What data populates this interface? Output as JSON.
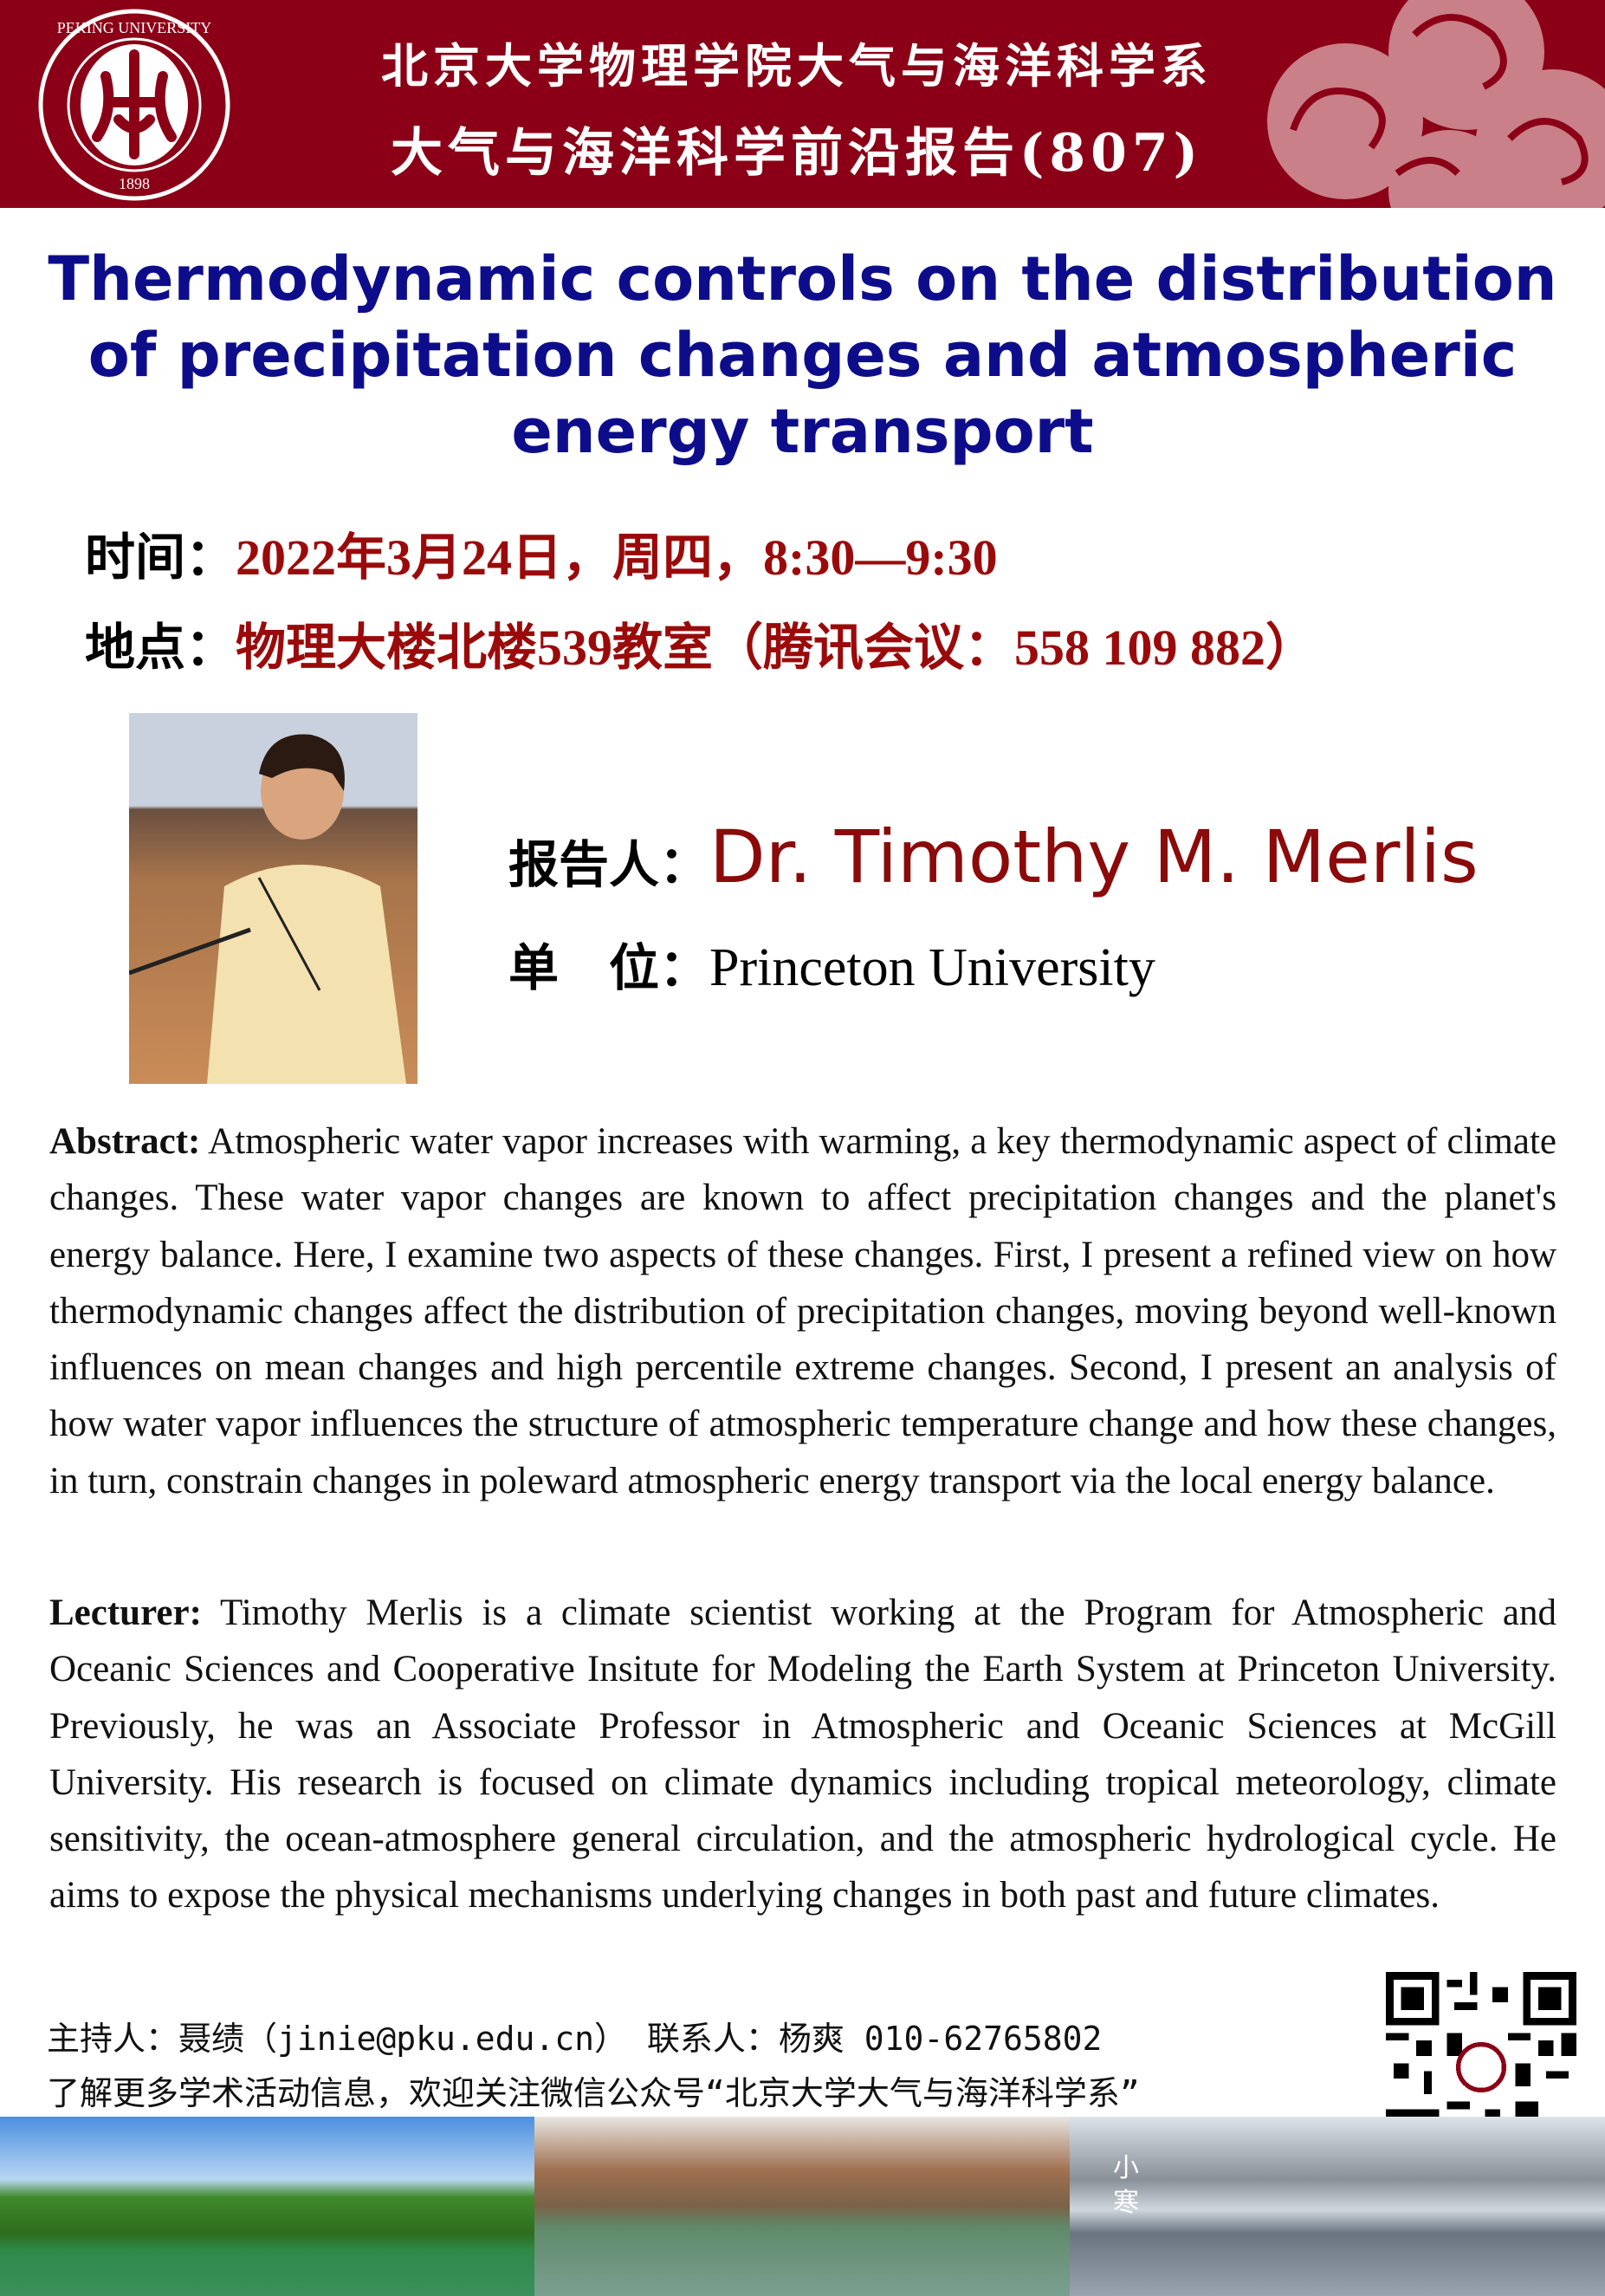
{
  "header": {
    "logo_text": "PEKING UNIVERSITY 1898",
    "line1": "北京大学物理学院大气与海洋科学系",
    "line2": "大气与海洋科学前沿报告(807)",
    "bg_color": "#8b0016"
  },
  "title": "Thermodynamic controls on the distribution of precipitation changes and atmospheric energy transport",
  "time": {
    "label": "时间：",
    "value": "2022年3月24日，周四，8:30—9:30"
  },
  "location": {
    "label": "地点：",
    "value": "物理大楼北楼539教室（腾讯会议：558 109 882）"
  },
  "speaker": {
    "label": "报告人：",
    "name": "Dr. Timothy M. Merlis"
  },
  "unit": {
    "label": "单　位：",
    "value": "Princeton University"
  },
  "abstract": {
    "label": "Abstract:",
    "text": " Atmospheric water vapor increases with warming, a key thermodynamic aspect of climate changes. These water vapor changes are known to affect precipitation changes and the planet's energy balance. Here, I examine two aspects of these changes. First, I present a refined view on how thermodynamic changes affect the distribution of precipitation changes, moving beyond well-known influences on mean changes and high percentile extreme changes. Second, I present an analysis of how water vapor influences the structure of atmospheric temperature change and how these changes, in turn, constrain changes in poleward atmospheric energy transport via the local energy balance."
  },
  "lecturer": {
    "label": "Lecturer:",
    "text": " Timothy Merlis is a climate scientist working at the Program for Atmospheric and Oceanic Sciences and Cooperative Insitute for Modeling the Earth System at Princeton University. Previously, he was an Associate Professor in Atmospheric and Oceanic Sciences at McGill University. His research is focused on climate dynamics including tropical meteorology, climate sensitivity, the ocean-atmosphere general circulation, and the atmospheric hydrological cycle. He aims to expose the physical mechanisms underlying changes in both past and future climates."
  },
  "contact": {
    "line1": "主持人：聂绩（jinie@pku.edu.cn）  联系人：杨爽 010-62765802",
    "line2": "了解更多学术活动信息，欢迎关注微信公众号“北京大学大气与海洋科学系”"
  },
  "footer": {
    "season_text": "小寒"
  }
}
